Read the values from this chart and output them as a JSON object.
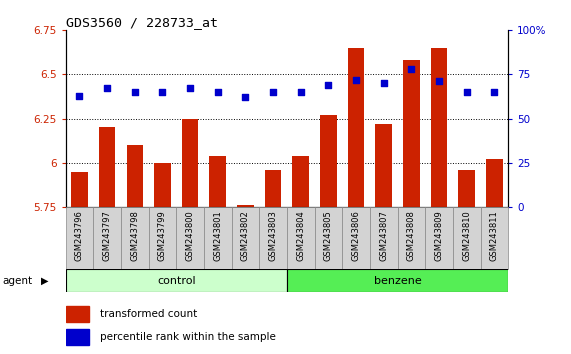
{
  "title": "GDS3560 / 228733_at",
  "samples": [
    "GSM243796",
    "GSM243797",
    "GSM243798",
    "GSM243799",
    "GSM243800",
    "GSM243801",
    "GSM243802",
    "GSM243803",
    "GSM243804",
    "GSM243805",
    "GSM243806",
    "GSM243807",
    "GSM243808",
    "GSM243809",
    "GSM243810",
    "GSM243811"
  ],
  "bar_values": [
    5.95,
    6.2,
    6.1,
    6.0,
    6.25,
    6.04,
    5.76,
    5.96,
    6.04,
    6.27,
    6.65,
    6.22,
    6.58,
    6.65,
    5.96,
    6.02
  ],
  "dot_values": [
    63,
    67,
    65,
    65,
    67,
    65,
    62,
    65,
    65,
    69,
    72,
    70,
    78,
    71,
    65,
    65
  ],
  "ylim_left": [
    5.75,
    6.75
  ],
  "ylim_right": [
    0,
    100
  ],
  "yticks_left": [
    5.75,
    6.0,
    6.25,
    6.5,
    6.75
  ],
  "yticks_right": [
    0,
    25,
    50,
    75,
    100
  ],
  "ytick_labels_left": [
    "5.75",
    "6",
    "6.25",
    "6.5",
    "6.75"
  ],
  "ytick_labels_right": [
    "0",
    "25",
    "50",
    "75",
    "100%"
  ],
  "hlines": [
    6.0,
    6.25,
    6.5
  ],
  "bar_color": "#cc2200",
  "dot_color": "#0000cc",
  "bar_bottom": 5.75,
  "control_label": "control",
  "benzene_label": "benzene",
  "agent_label": "agent",
  "legend_bar_label": "transformed count",
  "legend_dot_label": "percentile rank within the sample",
  "control_color": "#ccffcc",
  "benzene_color": "#55ee55",
  "bg_color": "#d3d3d3",
  "plot_bg": "#ffffff",
  "title_color": "#000000",
  "left_tick_color": "#cc2200",
  "right_tick_color": "#0000cc",
  "fig_width": 5.71,
  "fig_height": 3.54,
  "dpi": 100
}
